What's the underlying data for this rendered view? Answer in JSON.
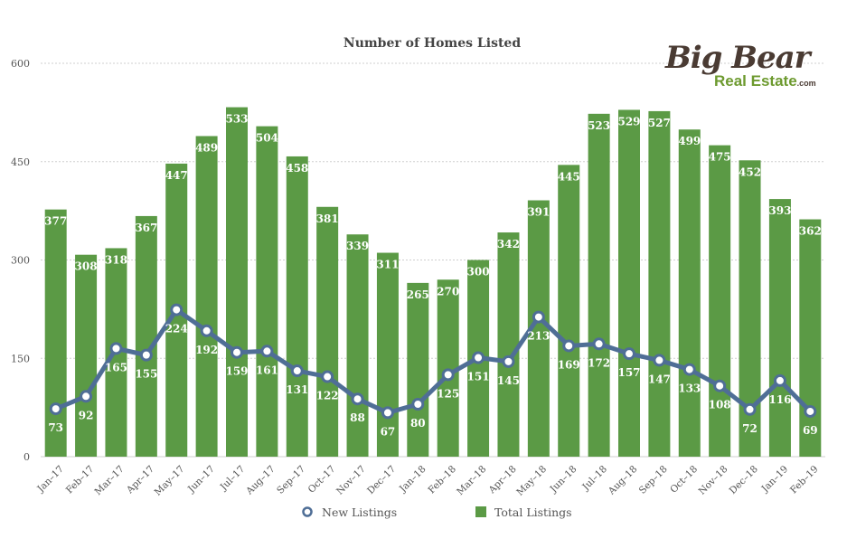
{
  "chart_data": {
    "type": "bar",
    "title": "Number of Homes Listed",
    "categories": [
      "Jan–17",
      "Feb–17",
      "Mar–17",
      "Apr–17",
      "May–17",
      "Jun–17",
      "Jul–17",
      "Aug–17",
      "Sep–17",
      "Oct–17",
      "Nov–17",
      "Dec–17",
      "Jan–18",
      "Feb–18",
      "Mar–18",
      "Apr–18",
      "May–18",
      "Jun–18",
      "Jul–18",
      "Aug–18",
      "Sep–18",
      "Oct–18",
      "Nov–18",
      "Dec–18",
      "Jan–19",
      "Feb–19"
    ],
    "series": [
      {
        "name": "Total Listings",
        "type": "bar",
        "color": "#5b9a45",
        "values": [
          377,
          308,
          318,
          367,
          447,
          489,
          533,
          504,
          458,
          381,
          339,
          311,
          265,
          270,
          300,
          342,
          391,
          445,
          523,
          529,
          527,
          499,
          475,
          452,
          393,
          362
        ]
      },
      {
        "name": "New Listings",
        "type": "line",
        "color": "#4f6e96",
        "values": [
          73,
          92,
          165,
          155,
          224,
          192,
          159,
          161,
          131,
          122,
          88,
          67,
          80,
          125,
          151,
          145,
          213,
          169,
          172,
          157,
          147,
          133,
          108,
          72,
          116,
          69
        ]
      }
    ],
    "ylim": [
      0,
      600
    ],
    "yticks": [
      0,
      150,
      300,
      450,
      600
    ],
    "xlabel": "",
    "ylabel": "",
    "grid": true,
    "legend": "bottom"
  },
  "logo": {
    "line1": "Big Bear",
    "line2": "Real Estate",
    "suffix": ".com"
  }
}
